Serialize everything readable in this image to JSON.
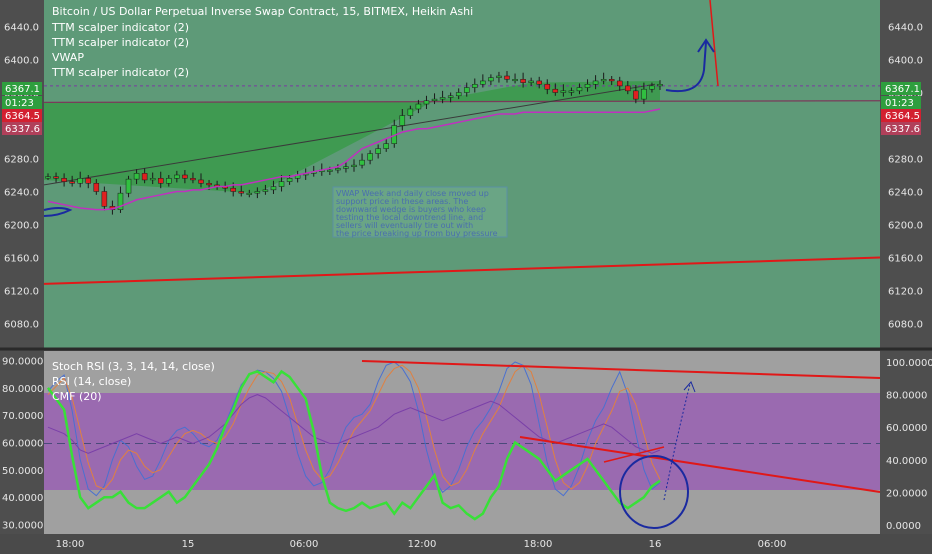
{
  "header": {
    "title": "Bitcoin / US Dollar Perpetual Inverse Swap Contract, 15, BITMEX, Heikin Ashi",
    "indicators": [
      "TTM scalper indicator (2)",
      "TTM scalper indicator (2)",
      "VWAP",
      "TTM scalper indicator (2)"
    ]
  },
  "lower_panel": {
    "indicators": [
      "Stoch RSI (3, 3, 14, 14, close)",
      "RSI (14, close)",
      "CMF (20)"
    ]
  },
  "annotation": {
    "note": "VWAP Week and daily close moved up support price in these areas. The downward wedge is buyers who keep testing the local downtrend line, and sellers will eventually tire out with the price breaking up from buy pressure"
  },
  "price_badges": {
    "right": [
      {
        "text": "6367.1",
        "color": "#2e9e3e"
      },
      {
        "text": "01:23",
        "color": "#2e9e3e"
      },
      {
        "text": "6364.5",
        "color": "#d32030"
      },
      {
        "text": "6337.6",
        "color": "#b0405a"
      }
    ],
    "left": [
      {
        "text": "6367.1",
        "color": "#2e9e3e"
      },
      {
        "text": "01:23",
        "color": "#2e9e3e"
      },
      {
        "text": "6364.5",
        "color": "#d32030"
      },
      {
        "text": "6337.6",
        "color": "#b0405a"
      }
    ]
  },
  "colors": {
    "main_bg": "#5e9a78",
    "green_fill": "#3a9a4a",
    "red_line": "#e01818",
    "vwap": "#c030c0",
    "lower_bg": "#a0a0a0",
    "lower_band": "#9a6ab0",
    "cmf_line": "#38e038",
    "blue_draw": "#1a2aa0"
  },
  "chart_data": [
    {
      "type": "line",
      "title": "Bitcoin / US Dollar Perpetual Inverse Swap Contract, 15, BITMEX, Heikin Ashi",
      "y_ticks_right": [
        "6440.0",
        "6400.0",
        "6360.0",
        "6280.0",
        "6240.0",
        "6200.0",
        "6160.0",
        "6120.0",
        "6080.0"
      ],
      "y_ticks_left": [
        "6440.0",
        "6400.0",
        "6360.0",
        "6320.0",
        "6280.0",
        "6240.0",
        "6200.0",
        "6160.0",
        "6120.0",
        "6080.0"
      ],
      "ylim": [
        6060,
        6460
      ],
      "series": [
        {
          "name": "Price (Heikin Ashi close)",
          "values": [
            6258,
            6256,
            6252,
            6250,
            6256,
            6250,
            6240,
            6222,
            6218,
            6238,
            6255,
            6262,
            6254,
            6256,
            6250,
            6256,
            6260,
            6256,
            6254,
            6250,
            6248,
            6246,
            6244,
            6240,
            6238,
            6238,
            6240,
            6242,
            6246,
            6252,
            6256,
            6260,
            6262,
            6264,
            6266,
            6266,
            6268,
            6270,
            6272,
            6278,
            6286,
            6292,
            6298,
            6320,
            6332,
            6340,
            6346,
            6350,
            6352,
            6354,
            6356,
            6360,
            6366,
            6370,
            6374,
            6378,
            6380,
            6376,
            6376,
            6372,
            6374,
            6370,
            6364,
            6360,
            6362,
            6362,
            6366,
            6370,
            6374,
            6376,
            6374,
            6368,
            6362,
            6352,
            6364,
            6368,
            6370
          ]
        },
        {
          "name": "VWAP",
          "values": [
            6228,
            6226,
            6224,
            6222,
            6220,
            6219,
            6218,
            6218,
            6219,
            6222,
            6226,
            6230,
            6232,
            6234,
            6236,
            6238,
            6240,
            6240,
            6242,
            6242,
            6244,
            6246,
            6246,
            6248,
            6248,
            6250,
            6252,
            6254,
            6256,
            6258,
            6258,
            6260,
            6262,
            6264,
            6266,
            6268,
            6270,
            6276,
            6284,
            6292,
            6296,
            6300,
            6304,
            6308,
            6312,
            6314,
            6316,
            6316,
            6318,
            6320,
            6322,
            6324,
            6326,
            6328,
            6330,
            6332,
            6334,
            6334,
            6334,
            6336,
            6336,
            6336,
            6336,
            6336,
            6336,
            6336,
            6336,
            6336,
            6336,
            6336,
            6336,
            6336,
            6336,
            6336,
            6336,
            6338,
            6340
          ]
        },
        {
          "name": "Trend line",
          "values": [
            6128,
            6160
          ]
        }
      ]
    },
    {
      "type": "line",
      "y_ticks_left": [
        "90.0000",
        "80.0000",
        "70.0000",
        "60.0000",
        "50.0000",
        "40.0000",
        "30.0000"
      ],
      "y_ticks_right": [
        "100.0000",
        "80.0000",
        "60.0000",
        "40.0000",
        "20.0000",
        "0.0000"
      ],
      "x_ticks": [
        "18:00",
        "15",
        "06:00",
        "12:00",
        "18:00",
        "16",
        "06:00"
      ],
      "series": [
        {
          "name": "CMF (20)",
          "values": [
            80,
            76,
            72,
            55,
            40,
            36,
            38,
            40,
            40,
            42,
            38,
            36,
            36,
            38,
            40,
            42,
            38,
            40,
            44,
            48,
            52,
            58,
            66,
            72,
            80,
            85,
            86,
            84,
            82,
            86,
            84,
            80,
            76,
            64,
            48,
            38,
            36,
            35,
            36,
            38,
            36,
            37,
            38,
            34,
            38,
            36,
            40,
            44,
            48,
            38,
            36,
            37,
            34,
            32,
            34,
            40,
            44,
            54,
            60,
            58,
            56,
            54,
            50,
            46,
            48,
            50,
            52,
            54,
            50,
            46,
            42,
            38,
            36,
            38,
            40,
            44,
            46
          ]
        },
        {
          "name": "RSI (14, close)",
          "values": [
            60,
            58,
            56,
            52,
            46,
            44,
            46,
            48,
            50,
            52,
            54,
            56,
            54,
            52,
            50,
            52,
            54,
            52,
            50,
            52,
            54,
            58,
            62,
            68,
            74,
            78,
            80,
            78,
            74,
            70,
            66,
            62,
            58,
            54,
            52,
            50,
            50,
            52,
            54,
            56,
            58,
            60,
            64,
            68,
            70,
            72,
            70,
            68,
            66,
            64,
            66,
            68,
            70,
            72,
            74,
            76,
            74,
            70,
            66,
            62,
            58,
            54,
            52,
            50,
            52,
            54,
            56,
            58,
            60,
            62,
            60,
            56,
            52,
            48,
            46,
            44,
            46
          ]
        },
        {
          "name": "Stoch RSI %K",
          "values": [
            82,
            88,
            92,
            70,
            40,
            22,
            18,
            24,
            40,
            52,
            48,
            36,
            28,
            30,
            40,
            52,
            58,
            60,
            56,
            50,
            48,
            52,
            62,
            74,
            86,
            92,
            95,
            94,
            90,
            82,
            66,
            44,
            30,
            24,
            26,
            34,
            48,
            60,
            66,
            68,
            74,
            88,
            98,
            100,
            96,
            88,
            70,
            46,
            28,
            20,
            24,
            34,
            48,
            58,
            64,
            72,
            82,
            96,
            100,
            98,
            86,
            62,
            38,
            22,
            18,
            24,
            36,
            52,
            64,
            72,
            84,
            94,
            80,
            56,
            34,
            22,
            26
          ]
        },
        {
          "name": "Stoch RSI %D",
          "values": [
            80,
            85,
            90,
            78,
            58,
            38,
            24,
            22,
            28,
            40,
            46,
            44,
            36,
            32,
            34,
            42,
            50,
            56,
            58,
            56,
            52,
            50,
            54,
            62,
            74,
            84,
            92,
            94,
            93,
            88,
            78,
            62,
            46,
            34,
            28,
            30,
            38,
            48,
            58,
            64,
            70,
            80,
            90,
            96,
            98,
            94,
            84,
            66,
            46,
            30,
            24,
            26,
            34,
            46,
            56,
            64,
            72,
            84,
            94,
            98,
            94,
            80,
            60,
            40,
            26,
            22,
            26,
            36,
            50,
            60,
            70,
            82,
            84,
            74,
            56,
            38,
            28
          ]
        },
        {
          "name": "Downtrend line",
          "values": [
            92,
            88
          ]
        }
      ]
    }
  ]
}
